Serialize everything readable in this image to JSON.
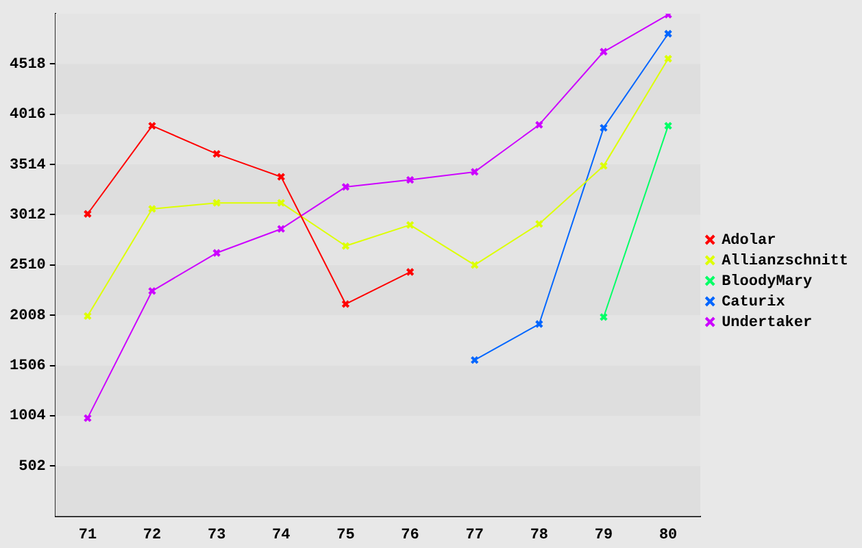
{
  "chart_data": {
    "type": "line",
    "categories": [
      "71",
      "72",
      "73",
      "74",
      "75",
      "76",
      "77",
      "78",
      "79",
      "80"
    ],
    "series": [
      {
        "name": "Adolar",
        "color": "#ff0000",
        "values": [
          3020,
          3900,
          3620,
          3390,
          2120,
          2440,
          null,
          null,
          null,
          null
        ]
      },
      {
        "name": "Allianzschnitt",
        "color": "#ddff00",
        "values": [
          2000,
          3070,
          3130,
          3130,
          2700,
          2910,
          2510,
          2920,
          3500,
          4570
        ]
      },
      {
        "name": "BloodyMary",
        "color": "#00ff66",
        "values": [
          null,
          null,
          null,
          null,
          null,
          null,
          null,
          null,
          1990,
          3900
        ]
      },
      {
        "name": "Caturix",
        "color": "#0066ff",
        "values": [
          null,
          null,
          null,
          null,
          null,
          null,
          1560,
          1920,
          3880,
          4820
        ]
      },
      {
        "name": "Undertaker",
        "color": "#cc00ff",
        "values": [
          980,
          2250,
          2630,
          2870,
          3290,
          3360,
          3440,
          3910,
          4640,
          5010
        ]
      }
    ],
    "ylim": [
      0,
      5020
    ],
    "yticks": [
      502,
      1004,
      1506,
      2008,
      2510,
      3012,
      3514,
      4016,
      4518
    ],
    "legend": "right",
    "marker": "cross",
    "line_style": "solid"
  }
}
